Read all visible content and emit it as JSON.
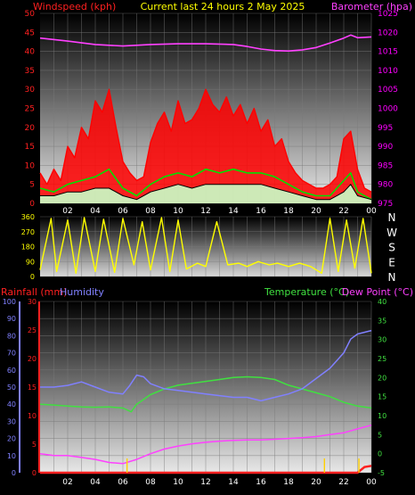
{
  "header": {
    "left": "Windspeed (kph)",
    "center": "Current last 24 hours 2 May 2025",
    "right": "Barometer (hpa)"
  },
  "colors": {
    "wind_axis": "#ff2020",
    "baro_axis": "#ff00ff",
    "wind_line": "#ff0000",
    "gust_line": "#00e000",
    "wind_avg_band": "#c8ffc8",
    "baro_line": "#ff40ff",
    "direction_line": "#ffff00",
    "rain_line": "#ff2020",
    "humidity_line": "#8080ff",
    "temperature_line": "#40e040",
    "dewpoint_line": "#ff40ff",
    "rain_ticks": "#ffd000"
  },
  "direction_labels": [
    "N",
    "W",
    "S",
    "E",
    "N"
  ],
  "chart_data": [
    {
      "id": "wind",
      "type": "line",
      "ylabel_left": "Windspeed (kph)",
      "ylabel_right": "Barometer (hpa)",
      "ylim_left": [
        0,
        50
      ],
      "ylim_right": [
        975,
        1025
      ],
      "left_ticks": [
        0,
        5,
        10,
        15,
        20,
        25,
        30,
        35,
        40,
        45,
        50
      ],
      "right_ticks": [
        975,
        980,
        985,
        990,
        995,
        1000,
        1005,
        1010,
        1015,
        1020,
        1025
      ],
      "xlim": [
        0,
        24
      ],
      "x_tick_labels": [
        "02",
        "04",
        "06",
        "08",
        "10",
        "12",
        "14",
        "16",
        "18",
        "20",
        "22",
        "00"
      ],
      "series": [
        {
          "name": "Barometer",
          "axis": "right",
          "x": [
            0,
            2,
            4,
            6,
            8,
            10,
            12,
            14,
            15,
            16,
            17,
            18,
            19,
            20,
            21,
            22,
            22.5,
            23,
            24
          ],
          "values": [
            1018.5,
            1017.7,
            1016.8,
            1016.4,
            1016.8,
            1017.0,
            1017.0,
            1016.8,
            1016.3,
            1015.6,
            1015.2,
            1015.1,
            1015.4,
            1016.0,
            1017.2,
            1018.5,
            1019.3,
            1018.6,
            1018.8
          ]
        },
        {
          "name": "Wind gust",
          "axis": "left",
          "x": [
            0,
            0.5,
            1,
            1.5,
            2,
            2.5,
            3,
            3.5,
            4,
            4.5,
            5,
            5.5,
            6,
            6.5,
            7,
            7.5,
            8,
            8.5,
            9,
            9.5,
            10,
            10.5,
            11,
            11.5,
            12,
            12.5,
            13,
            13.5,
            14,
            14.5,
            15,
            15.5,
            16,
            16.5,
            17,
            17.5,
            18,
            18.5,
            19,
            19.5,
            20,
            20.5,
            21,
            21.5,
            22,
            22.5,
            23,
            23.5,
            24
          ],
          "values": [
            8,
            5,
            9,
            6,
            15,
            12,
            20,
            17,
            27,
            24,
            30,
            20,
            11,
            8,
            6,
            7,
            16,
            21,
            24,
            19,
            27,
            21,
            22,
            25,
            30,
            26,
            24,
            28,
            23,
            26,
            21,
            25,
            19,
            22,
            15,
            17,
            11,
            8,
            6,
            5,
            4,
            4,
            5,
            7,
            17,
            19,
            9,
            4,
            3
          ]
        },
        {
          "name": "Wind speed",
          "axis": "left",
          "x": [
            0,
            1,
            2,
            3,
            4,
            5,
            6,
            7,
            8,
            9,
            10,
            11,
            12,
            13,
            14,
            15,
            16,
            17,
            18,
            19,
            20,
            21,
            22,
            22.5,
            23,
            24
          ],
          "values": [
            4,
            3,
            5,
            6,
            7,
            9,
            4,
            2,
            5,
            7,
            8,
            7,
            9,
            8,
            9,
            8,
            8,
            7,
            5,
            3,
            2,
            2,
            6,
            8,
            3,
            1
          ]
        },
        {
          "name": "Wind average",
          "axis": "left",
          "x": [
            0,
            1,
            2,
            3,
            4,
            5,
            6,
            7,
            8,
            9,
            10,
            11,
            12,
            13,
            14,
            15,
            16,
            17,
            18,
            19,
            20,
            21,
            22,
            22.5,
            23,
            24
          ],
          "values": [
            2,
            2,
            3,
            3,
            4,
            4,
            2,
            1,
            3,
            4,
            5,
            4,
            5,
            5,
            5,
            5,
            5,
            4,
            3,
            2,
            1,
            1,
            3,
            5,
            2,
            1
          ]
        }
      ]
    },
    {
      "id": "direction",
      "type": "line",
      "ylim": [
        0,
        360
      ],
      "y_ticks": [
        0,
        90,
        180,
        270,
        360
      ],
      "xlim": [
        0,
        24
      ],
      "series": [
        {
          "name": "Wind direction",
          "x": [
            0,
            0.8,
            1.2,
            2,
            2.6,
            3.2,
            4,
            4.6,
            5.4,
            6,
            6.8,
            7.4,
            8,
            8.8,
            9.4,
            10,
            10.6,
            11.4,
            12,
            12.8,
            13.6,
            14.4,
            15,
            15.8,
            16.6,
            17.2,
            18,
            18.8,
            19.6,
            20.4,
            21,
            21.6,
            22.2,
            22.8,
            23.4,
            24
          ],
          "values": [
            40,
            350,
            30,
            340,
            20,
            355,
            30,
            345,
            25,
            350,
            70,
            330,
            40,
            355,
            30,
            340,
            45,
            80,
            60,
            330,
            70,
            80,
            60,
            90,
            70,
            80,
            60,
            80,
            60,
            20,
            350,
            30,
            340,
            50,
            350,
            20
          ]
        }
      ]
    },
    {
      "id": "temperature",
      "type": "line",
      "ylabel_left_outer": "Rainfall (mm)",
      "ylabel_left_inner": "Humidity",
      "ylabel_right": "Temperature (°C)",
      "ylabel_right_2": "Dew Point (°C)",
      "humidity_ticks": [
        0,
        10,
        20,
        30,
        40,
        50,
        60,
        70,
        80,
        90,
        100
      ],
      "rain_ticks": [
        0,
        5,
        10,
        15,
        20,
        25,
        30
      ],
      "temp_ticks": [
        -5,
        0,
        5,
        10,
        15,
        20,
        25,
        30,
        35,
        40
      ],
      "ylim_temp": [
        -5,
        40
      ],
      "ylim_humidity": [
        0,
        100
      ],
      "ylim_rain": [
        0,
        30
      ],
      "xlim": [
        0,
        24
      ],
      "x_tick_labels": [
        "02",
        "04",
        "06",
        "08",
        "10",
        "12",
        "14",
        "16",
        "18",
        "20",
        "22",
        "00"
      ],
      "series": [
        {
          "name": "Temperature",
          "axis": "temp",
          "x": [
            0,
            1,
            2,
            3,
            4,
            5,
            6,
            6.6,
            7,
            8,
            9,
            10,
            11,
            12,
            13,
            14,
            15,
            16,
            17,
            18,
            19,
            20,
            21,
            22,
            23,
            24
          ],
          "values": [
            13,
            12.8,
            12.5,
            12.3,
            12.2,
            12.3,
            12,
            11,
            13,
            15.5,
            17,
            18,
            18.5,
            19,
            19.5,
            20,
            20.2,
            20,
            19.5,
            18,
            17,
            16,
            15,
            13.5,
            12.5,
            12
          ]
        },
        {
          "name": "Humidity",
          "axis": "humidity",
          "x": [
            0,
            1,
            2,
            3,
            4,
            5,
            6,
            6.5,
            7,
            7.5,
            8,
            9,
            10,
            11,
            12,
            13,
            14,
            15,
            16,
            17,
            18,
            19,
            20,
            21,
            22,
            22.5,
            23,
            24
          ],
          "values": [
            50,
            50,
            51,
            53,
            50,
            47,
            46,
            51,
            57,
            56,
            52,
            49,
            48,
            47,
            46,
            45,
            44,
            44,
            42,
            44,
            46,
            49,
            55,
            61,
            70,
            78,
            81,
            83
          ]
        },
        {
          "name": "Dew Point",
          "axis": "temp",
          "x": [
            0,
            1,
            2,
            3,
            4,
            5,
            6,
            7,
            8,
            9,
            10,
            11,
            12,
            13,
            14,
            15,
            16,
            17,
            18,
            19,
            20,
            21,
            22,
            23,
            24
          ],
          "values": [
            0,
            -0.5,
            -0.5,
            -1,
            -1.5,
            -2.3,
            -2.6,
            -1.5,
            0,
            1.2,
            2,
            2.6,
            3,
            3.3,
            3.5,
            3.6,
            3.6,
            3.8,
            4,
            4.2,
            4.5,
            5,
            5.5,
            6.5,
            7.5
          ]
        },
        {
          "name": "Rainfall",
          "axis": "rain",
          "x": [
            0,
            23,
            23.2,
            23.5,
            24
          ],
          "values": [
            0,
            0,
            0.4,
            1.0,
            1.2
          ]
        }
      ],
      "rain_marks_x": [
        6.3,
        20.6,
        23.1
      ]
    }
  ]
}
